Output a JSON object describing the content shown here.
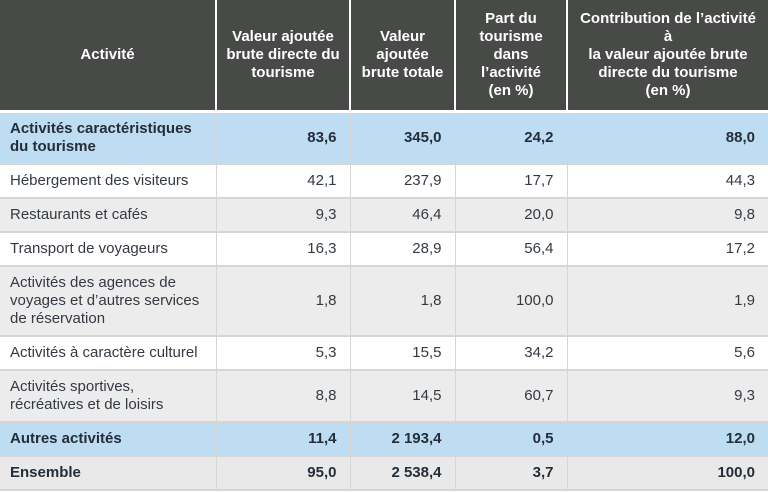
{
  "colors": {
    "header_bg": "#484a48",
    "header_text": "#ffffff",
    "highlight_bg": "#bedcf2",
    "shaded_bg": "#ececec",
    "total_bg": "#e9e9e9",
    "plain_bg": "#ffffff",
    "border": "#d6d6d6",
    "text": "#333a42",
    "bold_text": "#242e39"
  },
  "table": {
    "columns": [
      {
        "label": "Activité"
      },
      {
        "label": "Valeur ajoutée\nbrute directe du\ntourisme"
      },
      {
        "label": "Valeur\najoutée\nbrute totale"
      },
      {
        "label": "Part du\ntourisme dans\nl’activité\n(en %)"
      },
      {
        "label": "Contribution de l’activité à\nla valeur ajoutée brute\ndirecte du tourisme\n(en %)"
      }
    ],
    "rows": [
      {
        "label": "Activités caractéristiques du tourisme",
        "values": [
          "83,6",
          "345,0",
          "24,2",
          "88,0"
        ],
        "variant": "highlight"
      },
      {
        "label": "Hébergement des visiteurs",
        "values": [
          "42,1",
          "237,9",
          "17,7",
          "44,3"
        ],
        "variant": "plain"
      },
      {
        "label": "Restaurants et cafés",
        "values": [
          "9,3",
          "46,4",
          "20,0",
          "9,8"
        ],
        "variant": "shaded"
      },
      {
        "label": "Transport de voyageurs",
        "values": [
          "16,3",
          "28,9",
          "56,4",
          "17,2"
        ],
        "variant": "plain"
      },
      {
        "label": "Activités des agences de voyages et d’autres services de réservation",
        "values": [
          "1,8",
          "1,8",
          "100,0",
          "1,9"
        ],
        "variant": "shaded"
      },
      {
        "label": "Activités à caractère culturel",
        "values": [
          "5,3",
          "15,5",
          "34,2",
          "5,6"
        ],
        "variant": "plain"
      },
      {
        "label": "Activités sportives, récréatives et de loisirs",
        "values": [
          "8,8",
          "14,5",
          "60,7",
          "9,3"
        ],
        "variant": "shaded"
      },
      {
        "label": "Autres activités",
        "values": [
          "11,4",
          "2 193,4",
          "0,5",
          "12,0"
        ],
        "variant": "highlight"
      },
      {
        "label": "Ensemble",
        "values": [
          "95,0",
          "2 538,4",
          "3,7",
          "100,0"
        ],
        "variant": "total"
      }
    ]
  },
  "chart_data": {
    "type": "table",
    "title": "",
    "columns": [
      "Activité",
      "Valeur ajoutée brute directe du tourisme",
      "Valeur ajoutée brute totale",
      "Part du tourisme dans l’activité (en %)",
      "Contribution de l’activité à la valeur ajoutée brute directe du tourisme (en %)"
    ],
    "categories": [
      "Activités caractéristiques du tourisme",
      "Hébergement des visiteurs",
      "Restaurants et cafés",
      "Transport de voyageurs",
      "Activités des agences de voyages et d’autres services de réservation",
      "Activités à caractère culturel",
      "Activités sportives, récréatives et de loisirs",
      "Autres activités",
      "Ensemble"
    ],
    "series": [
      {
        "name": "Valeur ajoutée brute directe du tourisme",
        "values": [
          83.6,
          42.1,
          9.3,
          16.3,
          1.8,
          5.3,
          8.8,
          11.4,
          95.0
        ]
      },
      {
        "name": "Valeur ajoutée brute totale",
        "values": [
          345.0,
          237.9,
          46.4,
          28.9,
          1.8,
          15.5,
          14.5,
          2193.4,
          2538.4
        ]
      },
      {
        "name": "Part du tourisme dans l’activité (en %)",
        "values": [
          24.2,
          17.7,
          20.0,
          56.4,
          100.0,
          34.2,
          60.7,
          0.5,
          3.7
        ]
      },
      {
        "name": "Contribution de l’activité à la valeur ajoutée brute directe du tourisme (en %)",
        "values": [
          88.0,
          44.3,
          9.8,
          17.2,
          1.9,
          5.6,
          9.3,
          12.0,
          100.0
        ]
      }
    ],
    "highlighted_rows": [
      "Activités caractéristiques du tourisme",
      "Autres activités",
      "Ensemble"
    ],
    "number_format": "fr-FR (decimal comma, thin space thousands)"
  }
}
